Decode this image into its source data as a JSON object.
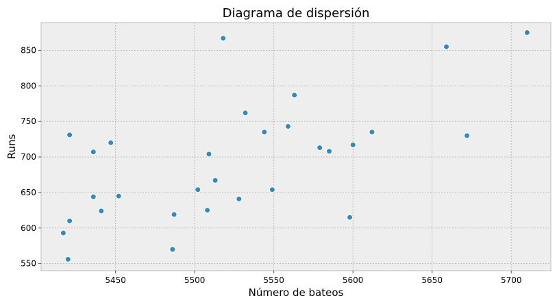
{
  "chart_data": {
    "type": "scatter",
    "title": "Diagrama de dispersión",
    "xlabel": "Número de bateos",
    "ylabel": "Runs",
    "xlim": [
      5403,
      5725
    ],
    "ylim": [
      540,
      889
    ],
    "xticks": [
      5450,
      5500,
      5550,
      5600,
      5650,
      5700
    ],
    "yticks": [
      550,
      600,
      650,
      700,
      750,
      800,
      850
    ],
    "grid": true,
    "point_color": "#348ABD",
    "background_color": "#EEEEEE",
    "points": [
      {
        "x": 5417,
        "y": 593
      },
      {
        "x": 5420,
        "y": 556
      },
      {
        "x": 5421,
        "y": 610
      },
      {
        "x": 5421,
        "y": 731
      },
      {
        "x": 5436,
        "y": 707
      },
      {
        "x": 5436,
        "y": 644
      },
      {
        "x": 5441,
        "y": 624
      },
      {
        "x": 5447,
        "y": 720
      },
      {
        "x": 5452,
        "y": 645
      },
      {
        "x": 5486,
        "y": 570
      },
      {
        "x": 5487,
        "y": 619
      },
      {
        "x": 5502,
        "y": 654
      },
      {
        "x": 5508,
        "y": 625
      },
      {
        "x": 5509,
        "y": 704
      },
      {
        "x": 5513,
        "y": 667
      },
      {
        "x": 5518,
        "y": 867
      },
      {
        "x": 5528,
        "y": 641
      },
      {
        "x": 5532,
        "y": 762
      },
      {
        "x": 5544,
        "y": 735
      },
      {
        "x": 5549,
        "y": 654
      },
      {
        "x": 5559,
        "y": 743
      },
      {
        "x": 5563,
        "y": 787
      },
      {
        "x": 5579,
        "y": 713
      },
      {
        "x": 5585,
        "y": 708
      },
      {
        "x": 5598,
        "y": 615
      },
      {
        "x": 5600,
        "y": 717
      },
      {
        "x": 5612,
        "y": 735
      },
      {
        "x": 5659,
        "y": 855
      },
      {
        "x": 5672,
        "y": 730
      },
      {
        "x": 5710,
        "y": 875
      }
    ]
  }
}
